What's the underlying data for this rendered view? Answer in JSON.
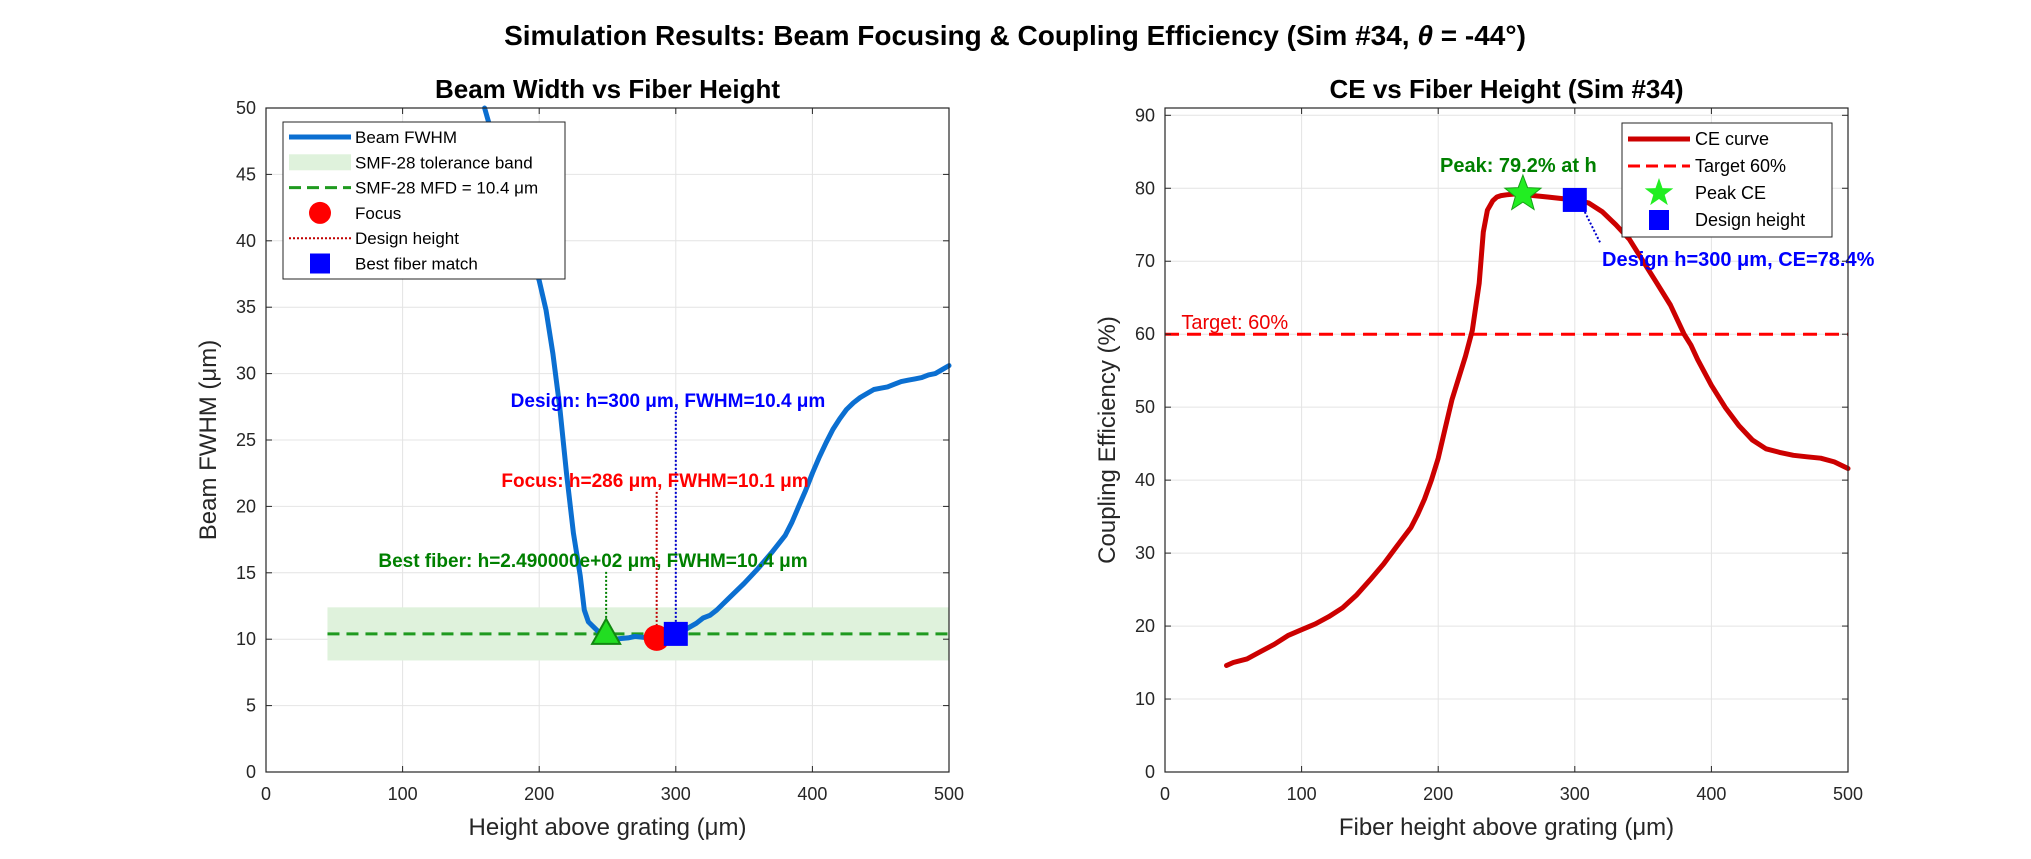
{
  "figure": {
    "suptitle_prefix": "Simulation Results: Beam Focusing & Coupling Efficiency (Sim #34, ",
    "suptitle_theta": "θ",
    "suptitle_suffix": " = -44°)"
  },
  "chart_data": [
    {
      "type": "line",
      "title": "Beam Width vs Fiber Height",
      "xlabel": "Height above grating (μm)",
      "ylabel": "Beam FWHM (μm)",
      "xlim": [
        0,
        500
      ],
      "ylim": [
        0,
        50
      ],
      "xticks": [
        0,
        100,
        200,
        300,
        400,
        500
      ],
      "yticks": [
        0,
        5,
        10,
        15,
        20,
        25,
        30,
        35,
        40,
        45,
        50
      ],
      "grid": true,
      "legend_position": "top-left",
      "legend": [
        {
          "label": "Beam FWHM",
          "kind": "line",
          "color": "#0b6fd1"
        },
        {
          "label": "SMF-28 tolerance band",
          "kind": "patch",
          "color": "#dff2dc"
        },
        {
          "label": "SMF-28 MFD = 10.4 μm",
          "kind": "dashed",
          "color": "#1f9a1f"
        },
        {
          "label": "Focus",
          "kind": "circle",
          "color": "#ff0000"
        },
        {
          "label": "Design height",
          "kind": "dotted",
          "color": "#c00000"
        },
        {
          "label": "Best fiber match",
          "kind": "square",
          "color": "#0000ff"
        }
      ],
      "series": [
        {
          "name": "Beam FWHM",
          "color": "#0b6fd1",
          "x": [
            160,
            165,
            170,
            175,
            180,
            185,
            190,
            195,
            200,
            205,
            210,
            215,
            220,
            225,
            230,
            233,
            236,
            240,
            243,
            245,
            248,
            250,
            255,
            260,
            265,
            270,
            275,
            280,
            286,
            290,
            295,
            300,
            305,
            310,
            315,
            320,
            325,
            330,
            340,
            350,
            360,
            370,
            380,
            385,
            390,
            395,
            400,
            405,
            410,
            415,
            420,
            425,
            430,
            435,
            440,
            445,
            450,
            455,
            460,
            465,
            470,
            475,
            480,
            485,
            490,
            495,
            500
          ],
          "y": [
            50.0,
            48.2,
            46.5,
            45.0,
            43.5,
            42.0,
            40.3,
            38.5,
            37.0,
            34.8,
            31.5,
            27.5,
            22.5,
            18.0,
            14.8,
            12.2,
            11.3,
            10.9,
            10.6,
            10.4,
            10.3,
            10.2,
            10.0,
            10.05,
            10.1,
            10.2,
            10.15,
            10.1,
            10.1,
            10.2,
            10.3,
            10.4,
            10.6,
            10.9,
            11.2,
            11.6,
            11.8,
            12.2,
            13.2,
            14.2,
            15.3,
            16.5,
            17.8,
            18.8,
            20.0,
            21.2,
            22.5,
            23.7,
            24.8,
            25.8,
            26.6,
            27.3,
            27.8,
            28.2,
            28.5,
            28.8,
            28.9,
            29.0,
            29.2,
            29.4,
            29.5,
            29.6,
            29.7,
            29.9,
            30.0,
            30.3,
            30.6
          ]
        }
      ],
      "tolerance_band": {
        "x": [
          45,
          500
        ],
        "y": [
          8.4,
          12.4
        ]
      },
      "reference_line": {
        "y": 10.4,
        "x": [
          45,
          500
        ]
      },
      "points": {
        "best_fiber": {
          "x": 249,
          "y": 10.4
        },
        "focus": {
          "x": 286,
          "y": 10.1
        },
        "design": {
          "x": 300,
          "y": 10.4
        }
      },
      "annotations": {
        "design_text": "Design: h=300 μm, FWHM=10.4 μm",
        "focus_text": "Focus: h=286 μm, FWHM=10.1 μm",
        "best_text": "Best fiber: h=2.490000e+02 μm, FWHM=10.4 μm"
      }
    },
    {
      "type": "line",
      "title": "CE vs Fiber Height (Sim #34)",
      "xlabel": "Fiber height above grating (μm)",
      "ylabel": "Coupling Efficiency (%)",
      "xlim": [
        0,
        500
      ],
      "ylim": [
        0,
        91
      ],
      "xticks": [
        0,
        100,
        200,
        300,
        400,
        500
      ],
      "yticks": [
        0,
        10,
        20,
        30,
        40,
        50,
        60,
        70,
        80,
        90
      ],
      "grid": true,
      "legend_position": "top-right",
      "legend": [
        {
          "label": "CE curve",
          "kind": "line",
          "color": "#cc0000"
        },
        {
          "label": "Target 60%",
          "kind": "dashed",
          "color": "#ff0000"
        },
        {
          "label": "Peak CE",
          "kind": "star",
          "color": "#22ee22"
        },
        {
          "label": "Design height",
          "kind": "square",
          "color": "#0000ff"
        }
      ],
      "series": [
        {
          "name": "CE curve",
          "color": "#cc0000",
          "x": [
            45,
            50,
            60,
            70,
            80,
            90,
            100,
            110,
            120,
            130,
            140,
            150,
            160,
            170,
            180,
            185,
            190,
            195,
            200,
            205,
            210,
            215,
            220,
            225,
            230,
            233,
            236,
            240,
            243,
            246,
            250,
            255,
            262,
            270,
            280,
            290,
            300,
            310,
            320,
            330,
            340,
            350,
            360,
            370,
            380,
            385,
            390,
            400,
            410,
            420,
            430,
            440,
            450,
            460,
            470,
            480,
            490,
            500
          ],
          "y": [
            14.6,
            15.0,
            15.5,
            16.5,
            17.5,
            18.7,
            19.5,
            20.3,
            21.3,
            22.5,
            24.2,
            26.3,
            28.5,
            31.0,
            33.5,
            35.3,
            37.4,
            40.0,
            43.0,
            47.0,
            51.0,
            54.0,
            57.0,
            60.5,
            67.0,
            74.0,
            77.0,
            78.3,
            78.8,
            79.0,
            79.1,
            79.2,
            79.2,
            79.0,
            78.8,
            78.6,
            78.4,
            78.0,
            76.8,
            75.0,
            73.0,
            70.0,
            67.0,
            64.0,
            60.0,
            58.5,
            56.5,
            53.0,
            50.0,
            47.5,
            45.5,
            44.3,
            43.8,
            43.4,
            43.2,
            43.0,
            42.5,
            41.6
          ]
        }
      ],
      "target_line": {
        "y": 60,
        "x": [
          0,
          500
        ]
      },
      "points": {
        "peak": {
          "x": 262,
          "y": 79.2
        },
        "design": {
          "x": 300,
          "y": 78.4
        }
      },
      "annotations": {
        "peak_text": "Peak: 79.2% at h",
        "design_text": "Design h=300 μm, CE=78.4%",
        "target_text": "Target: 60%"
      }
    }
  ]
}
